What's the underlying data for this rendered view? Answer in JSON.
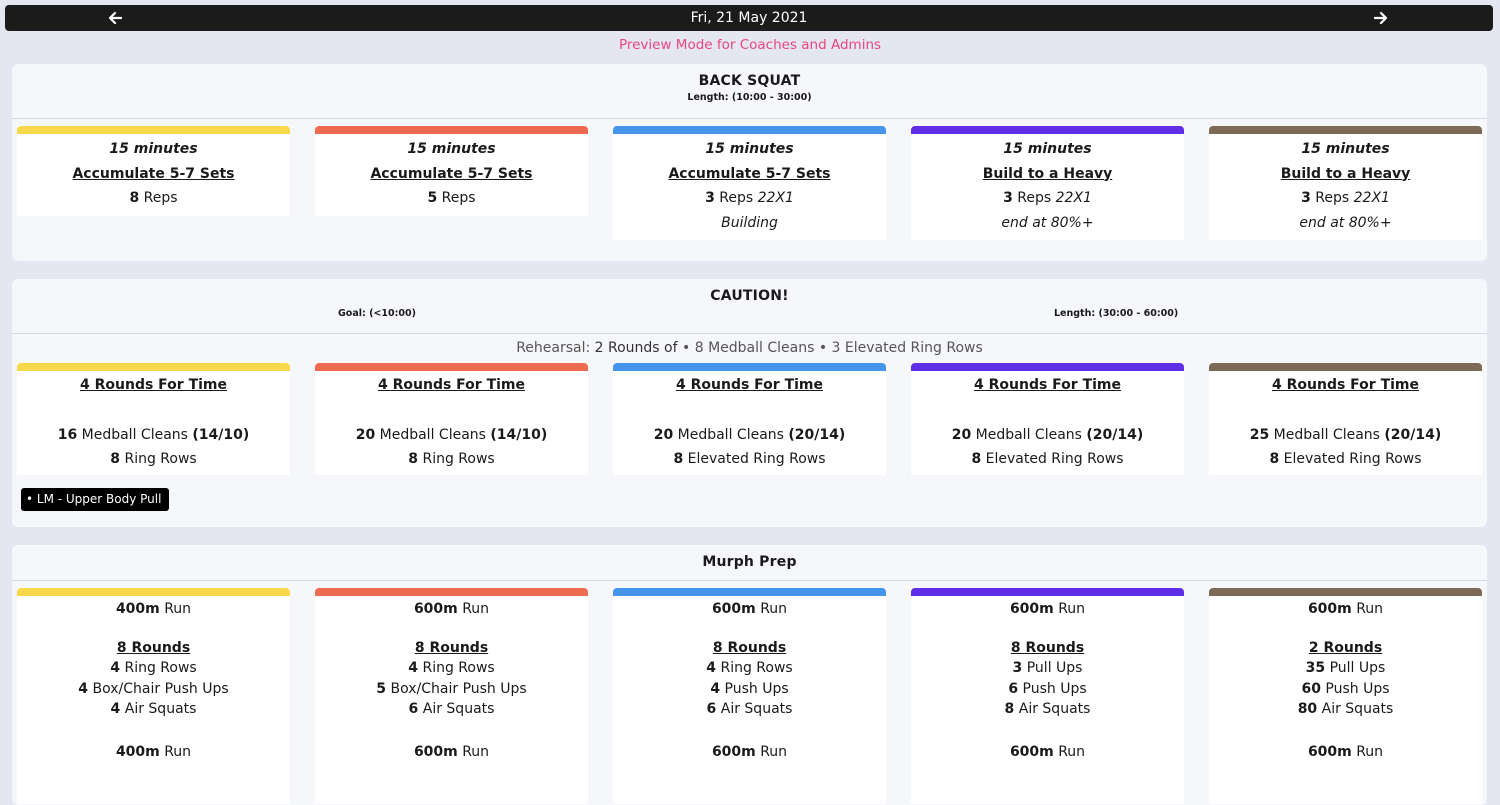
{
  "header": {
    "date": "Fri, 21 May 2021",
    "prev_icon": "arrow-left-icon",
    "next_icon": "arrow-right-icon",
    "preview_note": "Preview Mode for Coaches and Admins"
  },
  "colors": {
    "yellow": "#f7d84a",
    "red": "#ef6b4f",
    "blue": "#4595ec",
    "purple": "#5f2ee6",
    "brown": "#7c6a57",
    "preview": "#e8467c"
  },
  "back_squat": {
    "title": "BACK SQUAT",
    "length": "Length: (10:00 - 30:00)",
    "cards": [
      {
        "time": "15 minutes",
        "scheme": "Accumulate 5-7 Sets",
        "reps_num": "8",
        "reps_label": "Reps",
        "tempo": "",
        "note": ""
      },
      {
        "time": "15 minutes",
        "scheme": "Accumulate 5-7 Sets",
        "reps_num": "5",
        "reps_label": "Reps",
        "tempo": "",
        "note": ""
      },
      {
        "time": "15 minutes",
        "scheme": "Accumulate 5-7 Sets",
        "reps_num": "3",
        "reps_label": "Reps",
        "tempo": "22X1",
        "note": "Building"
      },
      {
        "time": "15 minutes",
        "scheme": "Build to a Heavy",
        "reps_num": "3",
        "reps_label": "Reps",
        "tempo": "22X1",
        "note": "end at 80%+"
      },
      {
        "time": "15 minutes",
        "scheme": "Build to a Heavy",
        "reps_num": "3",
        "reps_label": "Reps",
        "tempo": "22X1",
        "note": "end at 80%+"
      }
    ]
  },
  "caution": {
    "title": "CAUTION!",
    "goal": "Goal: (<10:00)",
    "length": "Length: (30:00 - 60:00)",
    "rehearsal_prefix": "Rehearsal:",
    "rehearsal_rounds": "2 Rounds of",
    "rehearsal_items": "• 8 Medball Cleans • 3 Elevated Ring Rows",
    "tag": "• LM - Upper Body Pull",
    "cards": [
      {
        "scheme": "4 Rounds For Time",
        "m1_num": "16",
        "m1_label": "Medball Cleans",
        "m1_weight": "(14/10)",
        "m2_num": "8",
        "m2_label": "Ring Rows"
      },
      {
        "scheme": "4 Rounds For Time",
        "m1_num": "20",
        "m1_label": "Medball Cleans",
        "m1_weight": "(14/10)",
        "m2_num": "8",
        "m2_label": "Ring Rows"
      },
      {
        "scheme": "4 Rounds For Time",
        "m1_num": "20",
        "m1_label": "Medball Cleans",
        "m1_weight": "(20/14)",
        "m2_num": "8",
        "m2_label": "Elevated Ring Rows"
      },
      {
        "scheme": "4 Rounds For Time",
        "m1_num": "20",
        "m1_label": "Medball Cleans",
        "m1_weight": "(20/14)",
        "m2_num": "8",
        "m2_label": "Elevated Ring Rows"
      },
      {
        "scheme": "4 Rounds For Time",
        "m1_num": "25",
        "m1_label": "Medball Cleans",
        "m1_weight": "(20/14)",
        "m2_num": "8",
        "m2_label": "Elevated Ring Rows"
      }
    ]
  },
  "murph": {
    "title": "Murph Prep",
    "cards": [
      {
        "run1_num": "400m",
        "run1_label": "Run",
        "rounds": "8 Rounds",
        "a_num": "4",
        "a_label": "Ring Rows",
        "b_num": "4",
        "b_label": "Box/Chair Push Ups",
        "c_num": "4",
        "c_label": "Air Squats",
        "run2_num": "400m",
        "run2_label": "Run"
      },
      {
        "run1_num": "600m",
        "run1_label": "Run",
        "rounds": "8 Rounds",
        "a_num": "4",
        "a_label": "Ring Rows",
        "b_num": "5",
        "b_label": "Box/Chair Push Ups",
        "c_num": "6",
        "c_label": "Air Squats",
        "run2_num": "600m",
        "run2_label": "Run"
      },
      {
        "run1_num": "600m",
        "run1_label": "Run",
        "rounds": "8 Rounds",
        "a_num": "4",
        "a_label": "Ring Rows",
        "b_num": "4",
        "b_label": "Push Ups",
        "c_num": "6",
        "c_label": "Air Squats",
        "run2_num": "600m",
        "run2_label": "Run"
      },
      {
        "run1_num": "600m",
        "run1_label": "Run",
        "rounds": "8 Rounds",
        "a_num": "3",
        "a_label": "Pull Ups",
        "b_num": "6",
        "b_label": "Push Ups",
        "c_num": "8",
        "c_label": "Air Squats",
        "run2_num": "600m",
        "run2_label": "Run"
      },
      {
        "run1_num": "600m",
        "run1_label": "Run",
        "rounds": "2 Rounds",
        "a_num": "35",
        "a_label": "Pull Ups",
        "b_num": "60",
        "b_label": "Push Ups",
        "c_num": "80",
        "c_label": "Air Squats",
        "run2_num": "600m",
        "run2_label": "Run"
      }
    ]
  }
}
